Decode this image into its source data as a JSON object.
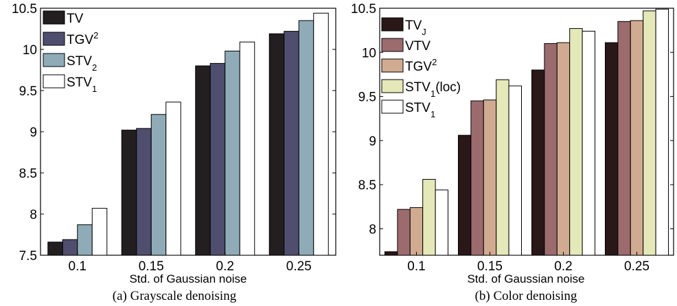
{
  "chart_data": [
    {
      "type": "bar",
      "caption": "(a) Grayscale denoising",
      "xlabel": "Std. of Gaussian noise",
      "ylabel": "",
      "ylim": [
        7.5,
        10.5
      ],
      "yticks": [
        "7.5",
        "8",
        "8.5",
        "9",
        "9.5",
        "10",
        "10.5"
      ],
      "categories": [
        "0.1",
        "0.15",
        "0.2",
        "0.25"
      ],
      "legend_position": "top-left",
      "series": [
        {
          "name": "TV",
          "label_base": "TV",
          "label_sup": "",
          "label_sub": "",
          "label_tail": "",
          "color": "#231f20",
          "values": [
            7.66,
            9.02,
            9.8,
            10.19
          ]
        },
        {
          "name": "TGV2",
          "label_base": "TGV",
          "label_sup": "2",
          "label_sub": "",
          "label_tail": "",
          "color": "#4f4e6e",
          "values": [
            7.69,
            9.04,
            9.83,
            10.22
          ]
        },
        {
          "name": "STV2",
          "label_base": "STV",
          "label_sup": "",
          "label_sub": "2",
          "label_tail": "",
          "color": "#8fabb7",
          "values": [
            7.87,
            9.21,
            9.98,
            10.35
          ]
        },
        {
          "name": "STV1",
          "label_base": "STV",
          "label_sup": "",
          "label_sub": "1",
          "label_tail": "",
          "color": "#ffffff",
          "values": [
            8.07,
            9.36,
            10.09,
            10.44
          ]
        }
      ]
    },
    {
      "type": "bar",
      "caption": "(b) Color denoising",
      "xlabel": "Std. of Gaussian noise",
      "ylabel": "",
      "ylim": [
        7.7,
        10.5
      ],
      "yticks": [
        "8",
        "8.5",
        "9",
        "9.5",
        "10",
        "10.5"
      ],
      "categories": [
        "0.1",
        "0.15",
        "0.2",
        "0.25"
      ],
      "legend_position": "top-left",
      "series": [
        {
          "name": "TVJ",
          "label_base": "TV",
          "label_sup": "",
          "label_sub": "J",
          "label_tail": "",
          "color": "#2a1718",
          "values": [
            7.74,
            9.06,
            9.8,
            10.11
          ]
        },
        {
          "name": "VTV",
          "label_base": "VTV",
          "label_sup": "",
          "label_sub": "",
          "label_tail": "",
          "color": "#9c6b6e",
          "values": [
            8.22,
            9.45,
            10.1,
            10.35
          ]
        },
        {
          "name": "TGV2",
          "label_base": "TGV",
          "label_sup": "2",
          "label_sub": "",
          "label_tail": "",
          "color": "#d1ab91",
          "values": [
            8.24,
            9.46,
            10.11,
            10.36
          ]
        },
        {
          "name": "STV1(loc)",
          "label_base": "STV",
          "label_sup": "",
          "label_sub": "1",
          "label_tail": "(loc)",
          "color": "#e5e8b8",
          "values": [
            8.56,
            9.69,
            10.27,
            10.47
          ]
        },
        {
          "name": "STV1",
          "label_base": "STV",
          "label_sup": "",
          "label_sub": "1",
          "label_tail": "",
          "color": "#ffffff",
          "values": [
            8.44,
            9.62,
            10.24,
            10.49
          ]
        }
      ]
    }
  ]
}
